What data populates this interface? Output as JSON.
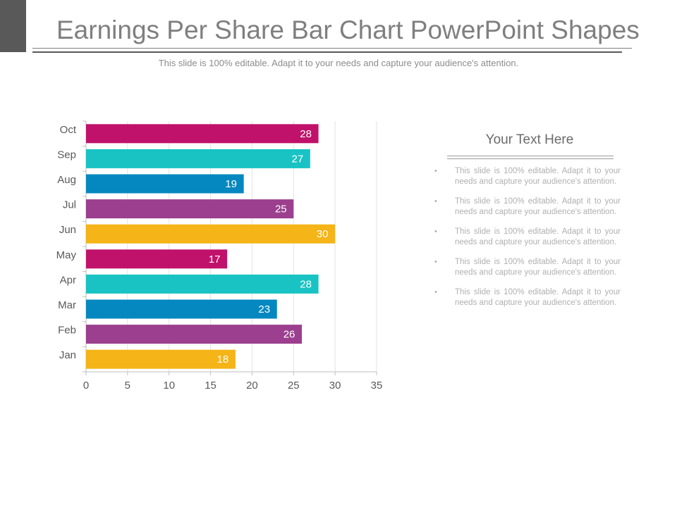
{
  "slide": {
    "title": "Earnings Per Share Bar Chart PowerPoint Shapes",
    "subtitle": "This slide is 100% editable. Adapt it to your needs and capture your audience's attention."
  },
  "text_panel": {
    "heading": "Your Text Here",
    "bullet_symbol": "•",
    "bullets": [
      "This slide is 100% editable. Adapt it to your needs and capture your audience's attention.",
      "This slide is 100% editable. Adapt it to your needs and capture your audience's attention.",
      "This slide is 100% editable. Adapt it to your needs and capture your audience's attention.",
      "This slide is 100% editable. Adapt it to your needs and capture your audience's attention.",
      "This slide is 100% editable. Adapt it to your needs and capture your audience's attention."
    ]
  },
  "chart_data": {
    "type": "bar",
    "orientation": "horizontal",
    "title": "",
    "xlabel": "",
    "ylabel": "",
    "categories": [
      "Jan",
      "Feb",
      "Mar",
      "Apr",
      "May",
      "Jun",
      "Jul",
      "Aug",
      "Sep",
      "Oct"
    ],
    "values": [
      18,
      26,
      23,
      28,
      17,
      30,
      25,
      19,
      27,
      28
    ],
    "bar_colors": [
      "#f5b417",
      "#9b3f8e",
      "#0588c0",
      "#19c3c3",
      "#c0126a",
      "#f5b417",
      "#9b3f8e",
      "#0588c0",
      "#19c3c3",
      "#c0126a"
    ],
    "xlim": [
      0,
      35
    ],
    "x_ticks": [
      0,
      5,
      10,
      15,
      20,
      25,
      30,
      35
    ],
    "data_labels": true,
    "grid": "vertical",
    "legend": "none"
  }
}
